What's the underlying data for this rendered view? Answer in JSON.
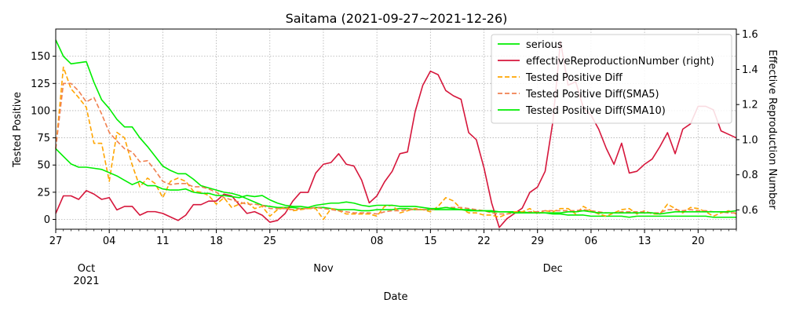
{
  "chart_data": {
    "type": "line",
    "title": "Saitama (2021-09-27~2021-12-26)",
    "xlabel": "Date",
    "ylabel": "Tested Positive",
    "y2label": "Effective Reproduction Number",
    "start_date": "2021-09-27",
    "ylim": [
      -9,
      175
    ],
    "y2lim": [
      0.49,
      1.63
    ],
    "yticks": [
      0,
      25,
      50,
      75,
      100,
      125,
      150
    ],
    "y2ticks": [
      0.6,
      0.8,
      1.0,
      1.2,
      1.4,
      1.6
    ],
    "x_ticks": [
      {
        "day": 0,
        "label": "27"
      },
      {
        "day": 7,
        "label": "04"
      },
      {
        "day": 14,
        "label": "11"
      },
      {
        "day": 21,
        "label": "18"
      },
      {
        "day": 28,
        "label": "25"
      },
      {
        "day": 42,
        "label": "08"
      },
      {
        "day": 49,
        "label": "15"
      },
      {
        "day": 56,
        "label": "22"
      },
      {
        "day": 63,
        "label": "29"
      },
      {
        "day": 70,
        "label": "06"
      },
      {
        "day": 77,
        "label": "13"
      },
      {
        "day": 84,
        "label": "20"
      }
    ],
    "month_labels": [
      {
        "day": 4,
        "label": "Oct"
      },
      {
        "day": 4,
        "label": "2021",
        "line": 2
      },
      {
        "day": 35,
        "label": "Nov"
      },
      {
        "day": 65,
        "label": "Dec"
      }
    ],
    "grid": true,
    "legend_position": "top-right",
    "series": [
      {
        "name": "serious",
        "color": "#00ee00",
        "dash": "solid",
        "axis": "left",
        "values": [
          165,
          150,
          143,
          144,
          145,
          126,
          110,
          102,
          92,
          85,
          85,
          75,
          67,
          58,
          49,
          45,
          42,
          42,
          37,
          31,
          29,
          27,
          25,
          24,
          22,
          19,
          16,
          13,
          12,
          11,
          11,
          11,
          10,
          10,
          11,
          11,
          10,
          9,
          9,
          9,
          8,
          8,
          9,
          9,
          9,
          10,
          10,
          9,
          9,
          9,
          9,
          9,
          9,
          9,
          8,
          8,
          8,
          8,
          7,
          7,
          7,
          7,
          6,
          6,
          6,
          5,
          5,
          4,
          4,
          4,
          3,
          3,
          3,
          3,
          3,
          2,
          3,
          3,
          3,
          3,
          3,
          3,
          3,
          3,
          3,
          3,
          2,
          2,
          2,
          2
        ]
      },
      {
        "name": "effectiveReproductionNumber (right)",
        "color": "#d6163b",
        "dash": "solid",
        "axis": "right",
        "values": [
          0.58,
          0.68,
          0.68,
          0.66,
          0.71,
          0.69,
          0.66,
          0.67,
          0.6,
          0.62,
          0.62,
          0.57,
          0.59,
          0.59,
          0.58,
          0.56,
          0.54,
          0.57,
          0.63,
          0.63,
          0.65,
          0.65,
          0.69,
          0.68,
          0.63,
          0.58,
          0.59,
          0.57,
          0.53,
          0.54,
          0.58,
          0.65,
          0.7,
          0.7,
          0.81,
          0.86,
          0.87,
          0.92,
          0.86,
          0.85,
          0.77,
          0.64,
          0.68,
          0.76,
          0.82,
          0.92,
          0.93,
          1.16,
          1.31,
          1.39,
          1.37,
          1.28,
          1.25,
          1.23,
          1.04,
          1.0,
          0.84,
          0.64,
          0.5,
          0.55,
          0.58,
          0.61,
          0.7,
          0.73,
          0.82,
          1.1,
          1.56,
          1.31,
          1.33,
          1.18,
          1.14,
          1.06,
          0.95,
          0.86,
          0.98,
          0.81,
          0.82,
          0.86,
          0.89,
          0.96,
          1.04,
          0.92,
          1.06,
          1.09,
          1.19,
          1.19,
          1.17,
          1.05,
          1.03,
          1.01
        ]
      },
      {
        "name": "Tested Positive Diff",
        "color": "#ffa500",
        "dash": "dashed",
        "axis": "left",
        "values": [
          65,
          140,
          120,
          112,
          103,
          70,
          70,
          35,
          80,
          75,
          50,
          30,
          38,
          33,
          20,
          35,
          38,
          35,
          26,
          25,
          22,
          14,
          20,
          11,
          14,
          16,
          10,
          12,
          3,
          9,
          11,
          8,
          9,
          10,
          10,
          0,
          10,
          8,
          5,
          5,
          5,
          5,
          3,
          12,
          13,
          6,
          8,
          10,
          9,
          7,
          12,
          20,
          17,
          10,
          6,
          6,
          4,
          4,
          2,
          5,
          7,
          7,
          10,
          5,
          8,
          7,
          10,
          10,
          5,
          12,
          8,
          5,
          3,
          6,
          9,
          10,
          5,
          8,
          5,
          5,
          14,
          10,
          6,
          11,
          10,
          7,
          3,
          6,
          8,
          5
        ]
      },
      {
        "name": "Tested Positive Diff(SMA5)",
        "color": "#f08050",
        "dash": "dashed",
        "axis": "left",
        "values": [
          65,
          125,
          125,
          118,
          108,
          112,
          97,
          80,
          72,
          65,
          62,
          53,
          54,
          45,
          35,
          32,
          33,
          33,
          30,
          30,
          28,
          25,
          20,
          18,
          16,
          14,
          14,
          13,
          10,
          10,
          10,
          9,
          10,
          10,
          11,
          10,
          9,
          8,
          7,
          6,
          6,
          6,
          5,
          7,
          8,
          8,
          9,
          9,
          9,
          9,
          10,
          11,
          11,
          11,
          10,
          9,
          8,
          6,
          5,
          5,
          6,
          6,
          7,
          7,
          8,
          8,
          8,
          8,
          8,
          9,
          8,
          7,
          6,
          6,
          7,
          7,
          7,
          7,
          6,
          6,
          9,
          9,
          8,
          9,
          8,
          8,
          7,
          7,
          6,
          6
        ]
      },
      {
        "name": "Tested Positive Diff(SMA10)",
        "color": "#00ee00",
        "dash": "solid",
        "axis": "left",
        "values": [
          65,
          58,
          51,
          48,
          48,
          47,
          46,
          43,
          40,
          36,
          32,
          35,
          31,
          31,
          28,
          27,
          27,
          28,
          25,
          24,
          24,
          22,
          22,
          21,
          20,
          22,
          21,
          22,
          18,
          15,
          13,
          12,
          12,
          11,
          13,
          14,
          15,
          15,
          16,
          15,
          13,
          12,
          13,
          13,
          13,
          12,
          12,
          12,
          11,
          10,
          10,
          11,
          10,
          9,
          9,
          8,
          8,
          7,
          7,
          7,
          6,
          6,
          6,
          6,
          6,
          6,
          6,
          7,
          7,
          8,
          7,
          6,
          6,
          6,
          6,
          6,
          6,
          6,
          6,
          5,
          6,
          7,
          7,
          7,
          7,
          7,
          7,
          7,
          7,
          8
        ]
      }
    ]
  }
}
